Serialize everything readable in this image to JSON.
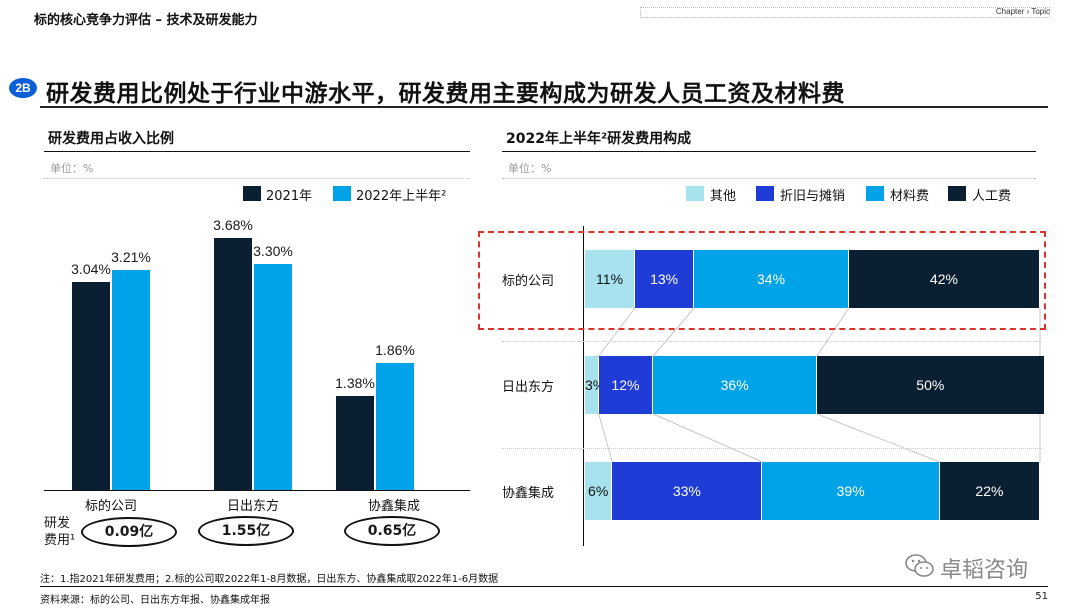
{
  "header": {
    "section": "标的核心竞争力评估 – 技术及研发能力",
    "chapter": "Chapter › Topic"
  },
  "slide": {
    "badge": "2B",
    "title": "研发费用比例处于行业中游水平，研发费用主要构成为研发人员工资及材料费",
    "page_number": "51"
  },
  "left_panel": {
    "subtitle": "研发费用占收入比例",
    "unit": "单位：%",
    "legend": [
      "2021年",
      "2022年上半年²"
    ],
    "expense_label": "研发\n费用¹",
    "expense_label_line1": "研发",
    "expense_label_line2": "费用¹",
    "expenses": [
      "0.09亿",
      "1.55亿",
      "0.65亿"
    ]
  },
  "right_panel": {
    "subtitle": "2022年上半年²研发费用构成",
    "unit": "单位：%",
    "legend": [
      "其他",
      "折旧与摊销",
      "材料费",
      "人工费"
    ]
  },
  "chart_data": [
    {
      "type": "bar",
      "title": "研发费用占收入比例",
      "categories": [
        "标的公司",
        "日出东方",
        "协鑫集成"
      ],
      "series": [
        {
          "name": "2021年",
          "values": [
            3.04,
            3.68,
            1.38
          ],
          "labels": [
            "3.04%",
            "3.68%",
            "1.38%"
          ]
        },
        {
          "name": "2022年上半年²",
          "values": [
            3.21,
            3.3,
            1.86
          ],
          "labels": [
            "3.21%",
            "3.30%",
            "1.86%"
          ]
        }
      ],
      "ylim": [
        0,
        4
      ],
      "colors": [
        "#0b1f33",
        "#00a3e8"
      ]
    },
    {
      "type": "bar",
      "orientation": "horizontal-stacked-100",
      "title": "2022年上半年²研发费用构成",
      "categories": [
        "标的公司",
        "日出东方",
        "协鑫集成"
      ],
      "series": [
        {
          "name": "其他",
          "values": [
            11,
            3,
            6
          ],
          "labels": [
            "11%",
            "3%",
            "6%"
          ]
        },
        {
          "name": "折旧与摊销",
          "values": [
            13,
            12,
            33
          ],
          "labels": [
            "13%",
            "12%",
            "33%"
          ]
        },
        {
          "name": "材料费",
          "values": [
            34,
            36,
            39
          ],
          "labels": [
            "34%",
            "36%",
            "39%"
          ]
        },
        {
          "name": "人工费",
          "values": [
            42,
            50,
            22
          ],
          "labels": [
            "42%",
            "50%",
            "22%"
          ]
        }
      ],
      "colors": [
        "#a8e2ef",
        "#1f3cd6",
        "#00a3e8",
        "#0b1f33"
      ],
      "highlight": "标的公司"
    }
  ],
  "footer": {
    "note": "注：1.指2021年研发费用；2.标的公司取2022年1-8月数据，日出东方、协鑫集成取2022年1-6月数据",
    "source": "资料来源：标的公司、日出东方年报、协鑫集成年报",
    "watermark": "卓韬咨询"
  }
}
